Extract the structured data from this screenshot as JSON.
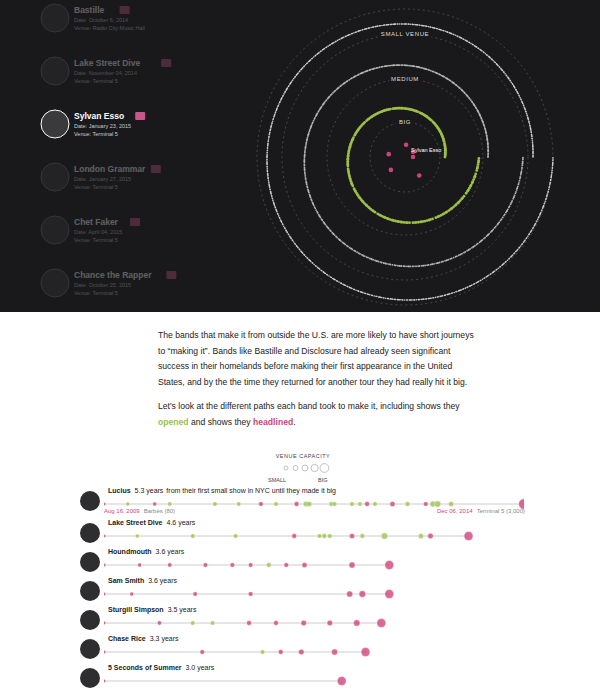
{
  "panel": {
    "bands": [
      {
        "name": "Bastille",
        "date": "Date: October 6, 2014",
        "venue": "Venue: Radio City Music Hall",
        "selected": false
      },
      {
        "name": "Lake Street Dive",
        "date": "Date: November 04, 2014",
        "venue": "Venue: Terminal 5",
        "selected": false
      },
      {
        "name": "Sylvan Esso",
        "date": "Date: January 23, 2015",
        "venue": "Venue: Terminal 5",
        "selected": true
      },
      {
        "name": "London Grammar",
        "date": "Date: January 27, 2015",
        "venue": "Venue: Terminal 5",
        "selected": false
      },
      {
        "name": "Chet Faker",
        "date": "Date: April 04, 2015",
        "venue": "Venue: Terminal 5",
        "selected": false
      },
      {
        "name": "Chance the Rapper",
        "date": "Date: October 25, 2015",
        "venue": "Venue: Terminal 5",
        "selected": false
      }
    ],
    "rings": [
      {
        "label": "SMALL VENUE",
        "dots": 700,
        "color": "#cfcfcf"
      },
      {
        "label": "MEDIUM",
        "dots": 450,
        "color": "#b5b5b5"
      },
      {
        "label": "BIG",
        "dots": 220,
        "color": "#9dbf4a"
      }
    ],
    "center": {
      "label": "Sylvan Esso",
      "dots": 6,
      "color": "#d0437a"
    }
  },
  "text": {
    "paragraph": "The bands that make it from outside the U.S. are more likely to have short journeys to “making it”. Bands like Bastille and Disclosure had already seen significant success in their homelands before making their first appearance in the United States, and by the the time they returned for another tour they had really hit it big.",
    "paragraph2": [
      {
        "text": "Let's look at the different paths each band took to make it, including shows they "
      },
      {
        "text": "opened",
        "role": "opened"
      },
      {
        "text": " and shows they "
      },
      {
        "text": "headlined",
        "role": "headlined"
      },
      {
        "text": "."
      }
    ]
  },
  "legend": {
    "title": "VENUE CAPACITY",
    "small": "SMALL",
    "big": "BIG"
  },
  "chart_data": {
    "type": "scatter",
    "xlim": [
      0,
      5.3
    ],
    "capacity_lim": [
      80,
      3000
    ],
    "tick_labels": false,
    "colors": {
      "opened": "#9dbf4a",
      "headlined": "#d0437a"
    },
    "rows": [
      {
        "name": "Lucius",
        "years": 5.3,
        "duration": "5.3 years",
        "note": "from their first small show in NYC until they made it big",
        "first_show": {
          "date": "Aug 16, 2009",
          "venue": "Barbès (80)"
        },
        "made_it": {
          "date": "Dec 06, 2014",
          "venue": "Terminal 5 (3,000)"
        },
        "shows": [
          {
            "x": 0,
            "capacity": 80,
            "role": "headlined"
          },
          {
            "x": 0.3,
            "capacity": 150,
            "role": "opened"
          },
          {
            "x": 0.64,
            "capacity": 200,
            "role": "headlined"
          },
          {
            "x": 0.83,
            "capacity": 250,
            "role": "opened"
          },
          {
            "x": 1.4,
            "capacity": 300,
            "role": "opened"
          },
          {
            "x": 1.7,
            "capacity": 250,
            "role": "opened"
          },
          {
            "x": 1.98,
            "capacity": 350,
            "role": "headlined"
          },
          {
            "x": 2.17,
            "capacity": 300,
            "role": "opened"
          },
          {
            "x": 2.43,
            "capacity": 400,
            "role": "headlined"
          },
          {
            "x": 2.55,
            "capacity": 600,
            "role": "opened"
          },
          {
            "x": 2.59,
            "capacity": 500,
            "role": "opened"
          },
          {
            "x": 2.87,
            "capacity": 400,
            "role": "opened"
          },
          {
            "x": 2.91,
            "capacity": 300,
            "role": "opened"
          },
          {
            "x": 3.13,
            "capacity": 350,
            "role": "opened"
          },
          {
            "x": 3.23,
            "capacity": 300,
            "role": "opened"
          },
          {
            "x": 3.32,
            "capacity": 400,
            "role": "headlined"
          },
          {
            "x": 3.42,
            "capacity": 350,
            "role": "opened"
          },
          {
            "x": 3.64,
            "capacity": 500,
            "role": "headlined"
          },
          {
            "x": 3.83,
            "capacity": 400,
            "role": "opened"
          },
          {
            "x": 4.06,
            "capacity": 350,
            "role": "headlined"
          },
          {
            "x": 4.15,
            "capacity": 700,
            "role": "opened"
          },
          {
            "x": 4.21,
            "capacity": 900,
            "role": "opened"
          },
          {
            "x": 4.38,
            "capacity": 500,
            "role": "opened"
          },
          {
            "x": 5.3,
            "capacity": 3000,
            "role": "headlined"
          }
        ]
      },
      {
        "name": "Lake Street Dive",
        "years": 4.6,
        "duration": "4.6 years",
        "shows": [
          {
            "x": 0,
            "capacity": 80,
            "role": "headlined"
          },
          {
            "x": 0.42,
            "capacity": 200,
            "role": "opened"
          },
          {
            "x": 1.12,
            "capacity": 300,
            "role": "opened"
          },
          {
            "x": 1.66,
            "capacity": 300,
            "role": "opened"
          },
          {
            "x": 2.4,
            "capacity": 400,
            "role": "headlined"
          },
          {
            "x": 2.72,
            "capacity": 350,
            "role": "opened"
          },
          {
            "x": 2.78,
            "capacity": 400,
            "role": "opened"
          },
          {
            "x": 2.85,
            "capacity": 350,
            "role": "opened"
          },
          {
            "x": 3.13,
            "capacity": 500,
            "role": "headlined"
          },
          {
            "x": 3.26,
            "capacity": 400,
            "role": "opened"
          },
          {
            "x": 3.54,
            "capacity": 900,
            "role": "opened"
          },
          {
            "x": 4.0,
            "capacity": 500,
            "role": "opened"
          },
          {
            "x": 4.12,
            "capacity": 600,
            "role": "headlined"
          },
          {
            "x": 4.6,
            "capacity": 2000,
            "role": "headlined"
          }
        ]
      },
      {
        "name": "Houndmouth",
        "years": 3.6,
        "duration": "3.6 years",
        "shows": [
          {
            "x": 0,
            "capacity": 80,
            "role": "headlined"
          },
          {
            "x": 0.45,
            "capacity": 200,
            "role": "headlined"
          },
          {
            "x": 0.83,
            "capacity": 250,
            "role": "headlined"
          },
          {
            "x": 1.28,
            "capacity": 300,
            "role": "headlined"
          },
          {
            "x": 1.62,
            "capacity": 350,
            "role": "headlined"
          },
          {
            "x": 1.85,
            "capacity": 300,
            "role": "headlined"
          },
          {
            "x": 2.08,
            "capacity": 400,
            "role": "opened"
          },
          {
            "x": 2.3,
            "capacity": 350,
            "role": "headlined"
          },
          {
            "x": 2.53,
            "capacity": 500,
            "role": "headlined"
          },
          {
            "x": 3.13,
            "capacity": 800,
            "role": "headlined"
          },
          {
            "x": 3.6,
            "capacity": 2000,
            "role": "headlined"
          }
        ]
      },
      {
        "name": "Sam Smith",
        "years": 3.6,
        "duration": "3.6 years",
        "shows": [
          {
            "x": 0,
            "capacity": 80,
            "role": "headlined"
          },
          {
            "x": 0.35,
            "capacity": 150,
            "role": "headlined"
          },
          {
            "x": 1.15,
            "capacity": 300,
            "role": "headlined"
          },
          {
            "x": 1.85,
            "capacity": 350,
            "role": "headlined"
          },
          {
            "x": 3.1,
            "capacity": 800,
            "role": "headlined"
          },
          {
            "x": 3.26,
            "capacity": 1000,
            "role": "headlined"
          },
          {
            "x": 3.6,
            "capacity": 2000,
            "role": "headlined"
          }
        ]
      },
      {
        "name": "Sturgill Simpson",
        "years": 3.5,
        "duration": "3.5 years",
        "shows": [
          {
            "x": 0,
            "capacity": 80,
            "role": "headlined"
          },
          {
            "x": 0.7,
            "capacity": 250,
            "role": "headlined"
          },
          {
            "x": 1.12,
            "capacity": 300,
            "role": "opened"
          },
          {
            "x": 1.37,
            "capacity": 300,
            "role": "opened"
          },
          {
            "x": 1.83,
            "capacity": 400,
            "role": "headlined"
          },
          {
            "x": 2.17,
            "capacity": 400,
            "role": "headlined"
          },
          {
            "x": 2.52,
            "capacity": 600,
            "role": "headlined"
          },
          {
            "x": 2.85,
            "capacity": 600,
            "role": "headlined"
          },
          {
            "x": 3.19,
            "capacity": 900,
            "role": "headlined"
          },
          {
            "x": 3.5,
            "capacity": 2000,
            "role": "headlined"
          }
        ]
      },
      {
        "name": "Chase Rice",
        "years": 3.3,
        "duration": "3.3 years",
        "shows": [
          {
            "x": 0,
            "capacity": 80,
            "role": "headlined"
          },
          {
            "x": 1.24,
            "capacity": 350,
            "role": "headlined"
          },
          {
            "x": 2.0,
            "capacity": 300,
            "role": "opened"
          },
          {
            "x": 2.23,
            "capacity": 400,
            "role": "headlined"
          },
          {
            "x": 2.49,
            "capacity": 600,
            "role": "headlined"
          },
          {
            "x": 2.91,
            "capacity": 800,
            "role": "headlined"
          },
          {
            "x": 3.3,
            "capacity": 2000,
            "role": "headlined"
          }
        ]
      },
      {
        "name": "5 Seconds of Summer",
        "years": 3.0,
        "duration": "3.0 years",
        "shows": [
          {
            "x": 0,
            "capacity": 80,
            "role": "headlined"
          },
          {
            "x": 3.0,
            "capacity": 2000,
            "role": "headlined"
          }
        ]
      }
    ]
  }
}
